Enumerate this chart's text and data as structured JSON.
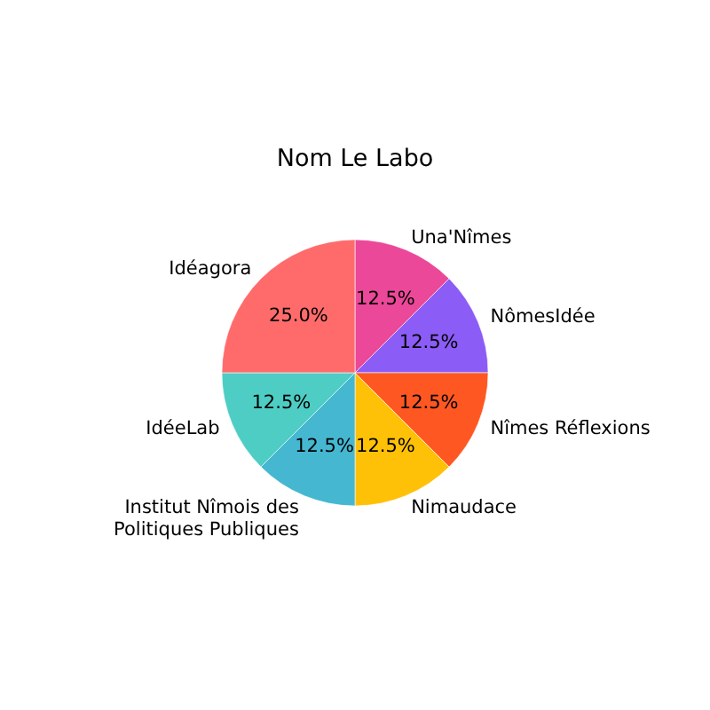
{
  "chart_data": {
    "type": "pie",
    "title": "Nom Le Labo",
    "categories": [
      "Una'Nîmes",
      "NômesIdée",
      "Nîmes Réflexions",
      "Nimaudace",
      "Institut Nîmois des Politiques Publiques",
      "IdéeLab",
      "Idéagora"
    ],
    "values": [
      12.5,
      12.5,
      12.5,
      12.5,
      12.5,
      12.5,
      25
    ],
    "colors": [
      "#ec4899",
      "#8b5cf6",
      "#ff5722",
      "#ffc107",
      "#45b7d1",
      "#4ecdc4",
      "#ff6b6b"
    ],
    "value_labels": [
      "12.5%",
      "12.5%",
      "12.5%",
      "12.5%",
      "12.5%",
      "12.5%",
      "25.0%"
    ],
    "legend": false
  }
}
